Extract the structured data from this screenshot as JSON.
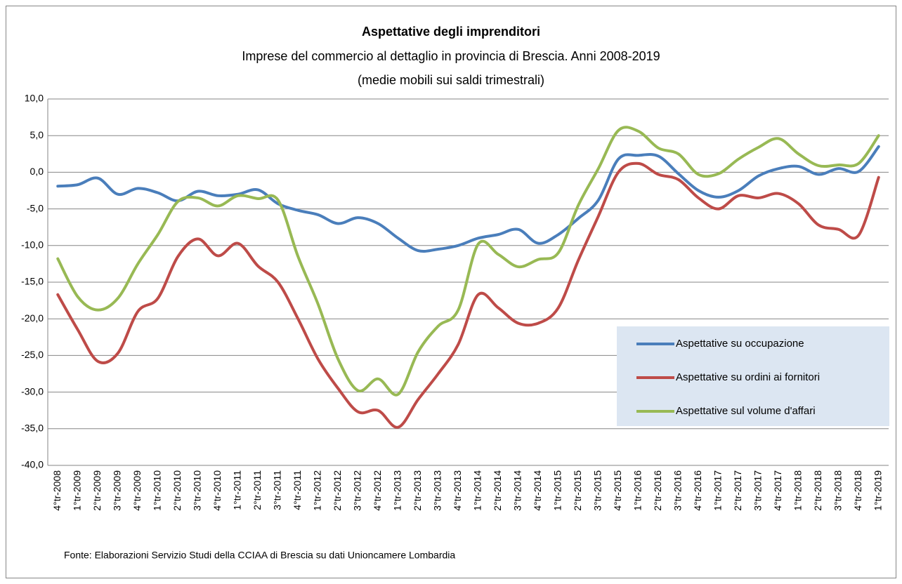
{
  "chart_data": {
    "type": "line",
    "title": "Aspettative degli imprenditori",
    "subtitle": "Imprese  del commercio al dettaglio in provincia di Brescia. Anni 2008-2019",
    "subtitle2": "(medie mobili sui saldi  trimestrali)",
    "source": "Fonte: Elaborazioni Servizio Studi della CCIAA di Brescia su dati Unioncamere Lombardia",
    "categories": [
      "4°tr-2008",
      "1°tr-2009",
      "2°tr-2009",
      "3°tr-2009",
      "4°tr-2009",
      "1°tr-2010",
      "2°tr-2010",
      "3°tr-2010",
      "4°tr-2010",
      "1°tr-2011",
      "2°tr-2011",
      "3°tr-2011",
      "4°tr-2011",
      "1°tr-2012",
      "2°tr-2012",
      "3°tr-2012",
      "4°tr-2012",
      "1°tr-2013",
      "2°tr-2013",
      "3°tr-2013",
      "4°tr-2013",
      "1°tr-2014",
      "2°tr-2014",
      "3°tr-2014",
      "4°tr-2014",
      "1°tr-2015",
      "2°tr-2015",
      "3°tr-2015",
      "4°tr-2015",
      "1°tr-2016",
      "2°tr-2016",
      "3°tr-2016",
      "4°tr-2016",
      "1°tr-2017",
      "2°tr-2017",
      "3°tr-2017",
      "4°tr-2017",
      "1°tr-2018",
      "2°tr-2018",
      "3°tr-2018",
      "4°tr-2018",
      "1°tr-2019"
    ],
    "series": [
      {
        "name": "Aspettative su occupazione",
        "color": "#4a7ebb",
        "values": [
          -1.9,
          -1.7,
          -0.8,
          -3.0,
          -2.2,
          -2.8,
          -3.9,
          -2.6,
          -3.2,
          -3.0,
          -2.4,
          -4.3,
          -5.2,
          -5.8,
          -7.0,
          -6.2,
          -7.0,
          -9.0,
          -10.7,
          -10.5,
          -10.0,
          -9.0,
          -8.5,
          -7.8,
          -9.7,
          -8.5,
          -6.3,
          -3.8,
          1.8,
          2.3,
          2.2,
          -0.2,
          -2.5,
          -3.4,
          -2.5,
          -0.5,
          0.5,
          0.8,
          -0.3,
          0.5,
          0.1,
          3.5
        ]
      },
      {
        "name": "Aspettative su ordini ai fornitori",
        "color": "#be4b48",
        "values": [
          -16.7,
          -21.5,
          -25.8,
          -24.7,
          -19.0,
          -17.2,
          -11.5,
          -9.1,
          -11.4,
          -9.7,
          -12.8,
          -15.0,
          -20.0,
          -25.5,
          -29.5,
          -32.7,
          -32.5,
          -34.8,
          -31.0,
          -27.5,
          -23.5,
          -16.7,
          -18.5,
          -20.6,
          -20.6,
          -18.5,
          -12.0,
          -6.0,
          0.0,
          1.2,
          -0.3,
          -1.0,
          -3.5,
          -5.0,
          -3.2,
          -3.5,
          -2.9,
          -4.3,
          -7.2,
          -7.8,
          -8.6,
          -0.7
        ]
      },
      {
        "name": "Aspettative sul volume d'affari",
        "color": "#98b954",
        "values": [
          -11.8,
          -17.0,
          -18.8,
          -17.2,
          -12.5,
          -8.5,
          -4.0,
          -3.5,
          -4.6,
          -3.2,
          -3.6,
          -3.8,
          -11.5,
          -18.0,
          -25.5,
          -29.8,
          -28.2,
          -30.3,
          -24.5,
          -21.0,
          -18.8,
          -9.8,
          -11.2,
          -12.9,
          -11.9,
          -11.0,
          -4.5,
          0.5,
          5.7,
          5.6,
          3.3,
          2.5,
          -0.3,
          -0.2,
          1.8,
          3.4,
          4.6,
          2.5,
          0.9,
          1.0,
          1.2,
          5.0
        ]
      }
    ],
    "ylim": [
      -40,
      10
    ],
    "yticks": [
      {
        "value": -40,
        "label": "-40,0"
      },
      {
        "value": -35,
        "label": "-35,0"
      },
      {
        "value": -30,
        "label": "-30,0"
      },
      {
        "value": -25,
        "label": "-25,0"
      },
      {
        "value": -20,
        "label": "-20,0"
      },
      {
        "value": -15,
        "label": "-15,0"
      },
      {
        "value": -10,
        "label": "-10,0"
      },
      {
        "value": -5,
        "label": "-5,0"
      },
      {
        "value": 0,
        "label": "0,0"
      },
      {
        "value": 5,
        "label": "5,0"
      },
      {
        "value": 10,
        "label": "10,0"
      }
    ],
    "grid": true
  }
}
